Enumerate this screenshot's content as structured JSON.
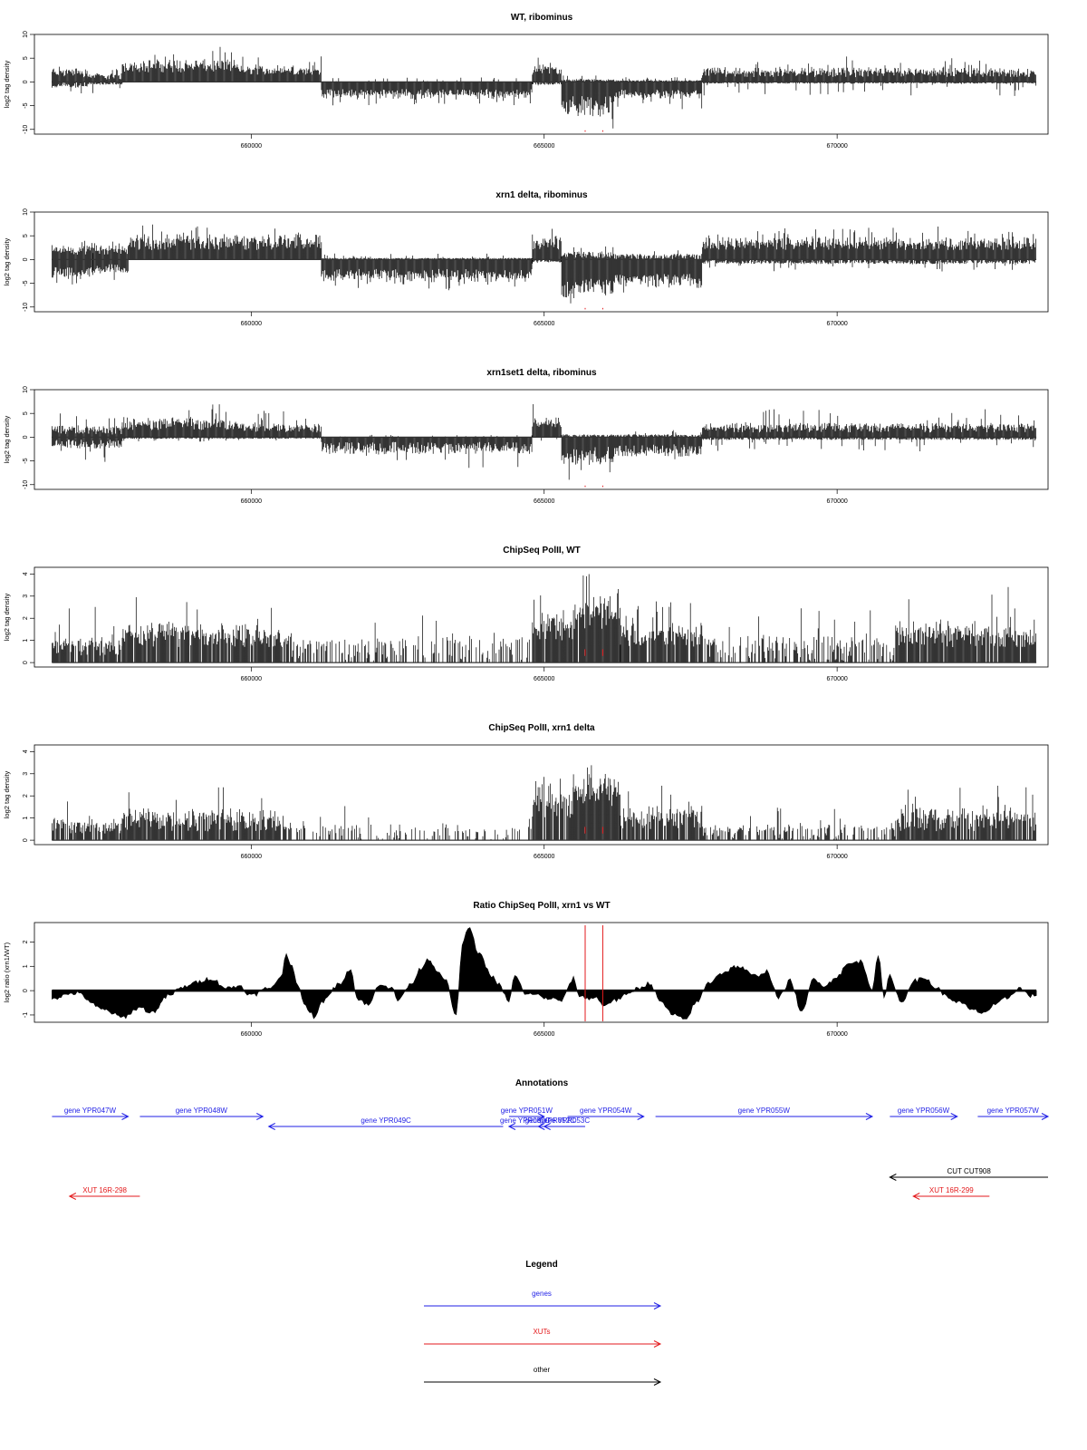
{
  "colors": {
    "gene": "#1f1fe6",
    "xut": "#e31a1c",
    "other": "#000000",
    "marker": "#e31a1c",
    "signal": "#000000"
  },
  "chart_data": [
    {
      "id": "p1",
      "type": "bar",
      "title": "WT, ribominus",
      "ylabel": "log2 tag density",
      "xlim": [
        656300,
        673600
      ],
      "ylim": [
        -11,
        10
      ],
      "yticks": [
        10,
        5,
        0,
        -5,
        -10
      ],
      "ytick_labels": [
        "10",
        "5",
        "0",
        "-5",
        "-10"
      ],
      "xticks": [
        660000,
        665000,
        670000
      ],
      "xtick_labels": [
        "660000",
        "665000",
        "670000"
      ],
      "markers": [
        665700,
        666000
      ],
      "segments": [
        {
          "x0": 656600,
          "x1": 657200,
          "pos": [
            1,
            2.5,
            4
          ],
          "neg": [
            0,
            1,
            3
          ]
        },
        {
          "x0": 657200,
          "x1": 657800,
          "pos": [
            0.5,
            1.5,
            3
          ],
          "neg": [
            0,
            0.5,
            2.5
          ]
        },
        {
          "x0": 657800,
          "x1": 659800,
          "pos": [
            2,
            4,
            7.5
          ],
          "neg": [
            0,
            0,
            0
          ]
        },
        {
          "x0": 659800,
          "x1": 661200,
          "pos": [
            1.5,
            3,
            6
          ],
          "neg": [
            0,
            0,
            0
          ]
        },
        {
          "x0": 661200,
          "x1": 664800,
          "pos": [
            0,
            0,
            1
          ],
          "neg": [
            1.5,
            3,
            5
          ]
        },
        {
          "x0": 664800,
          "x1": 665300,
          "pos": [
            1.5,
            3.5,
            9.5
          ],
          "neg": [
            0,
            0.5,
            1.5
          ]
        },
        {
          "x0": 665300,
          "x1": 666200,
          "pos": [
            0,
            0.5,
            1.5
          ],
          "neg": [
            3,
            6,
            10
          ]
        },
        {
          "x0": 666200,
          "x1": 667700,
          "pos": [
            0,
            0.3,
            1
          ],
          "neg": [
            1.5,
            3,
            6
          ]
        },
        {
          "x0": 667700,
          "x1": 673400,
          "pos": [
            1,
            2.5,
            6
          ],
          "neg": [
            0,
            0.3,
            3
          ]
        }
      ]
    },
    {
      "id": "p2",
      "type": "bar",
      "title": "xrn1 delta, ribominus",
      "ylabel": "log2 tag density",
      "xlim": [
        656300,
        673600
      ],
      "ylim": [
        -11,
        10
      ],
      "yticks": [
        10,
        5,
        0,
        -5,
        -10
      ],
      "ytick_labels": [
        "10",
        "5",
        "0",
        "-5",
        "-10"
      ],
      "xticks": [
        660000,
        665000,
        670000
      ],
      "xtick_labels": [
        "660000",
        "665000",
        "670000"
      ],
      "markers": [
        665700,
        666000
      ],
      "segments": [
        {
          "x0": 656600,
          "x1": 657300,
          "pos": [
            1,
            2.5,
            4.5
          ],
          "neg": [
            1.5,
            3.5,
            6
          ]
        },
        {
          "x0": 657300,
          "x1": 657900,
          "pos": [
            1,
            2.5,
            5
          ],
          "neg": [
            1,
            2.5,
            4.5
          ]
        },
        {
          "x0": 657900,
          "x1": 661200,
          "pos": [
            2,
            4.5,
            7.5
          ],
          "neg": [
            0,
            0,
            0
          ]
        },
        {
          "x0": 661200,
          "x1": 664800,
          "pos": [
            0,
            0.3,
            1.5
          ],
          "neg": [
            2,
            4,
            6.5
          ]
        },
        {
          "x0": 664800,
          "x1": 665300,
          "pos": [
            2,
            4.5,
            9.5
          ],
          "neg": [
            0,
            0.5,
            2
          ]
        },
        {
          "x0": 665300,
          "x1": 666200,
          "pos": [
            0.3,
            1.5,
            3
          ],
          "neg": [
            4,
            7,
            10
          ]
        },
        {
          "x0": 666200,
          "x1": 667700,
          "pos": [
            0,
            1,
            2.5
          ],
          "neg": [
            3,
            5,
            7
          ]
        },
        {
          "x0": 667700,
          "x1": 673400,
          "pos": [
            2,
            4,
            7
          ],
          "neg": [
            0,
            0.8,
            2.5
          ]
        }
      ]
    },
    {
      "id": "p3",
      "type": "bar",
      "title": "xrn1set1 delta, ribominus",
      "ylabel": "log2 tag density",
      "xlim": [
        656300,
        673600
      ],
      "ylim": [
        -11,
        10
      ],
      "yticks": [
        10,
        5,
        0,
        -5,
        -10
      ],
      "ytick_labels": [
        "10",
        "5",
        "0",
        "-5",
        "-10"
      ],
      "xticks": [
        660000,
        665000,
        670000
      ],
      "xtick_labels": [
        "660000",
        "665000",
        "670000"
      ],
      "markers": [
        665700,
        666000
      ],
      "segments": [
        {
          "x0": 656600,
          "x1": 657800,
          "pos": [
            0.5,
            2,
            5
          ],
          "neg": [
            0.5,
            2,
            5.5
          ]
        },
        {
          "x0": 657800,
          "x1": 659800,
          "pos": [
            1.5,
            3.5,
            7.5
          ],
          "neg": [
            0,
            0.3,
            1
          ]
        },
        {
          "x0": 659800,
          "x1": 661200,
          "pos": [
            1,
            2.5,
            6
          ],
          "neg": [
            0,
            0.3,
            1.5
          ]
        },
        {
          "x0": 661200,
          "x1": 664800,
          "pos": [
            0,
            0,
            0.5
          ],
          "neg": [
            1,
            3,
            6.5
          ]
        },
        {
          "x0": 664800,
          "x1": 665300,
          "pos": [
            2,
            3.5,
            9.5
          ],
          "neg": [
            0,
            0,
            1
          ]
        },
        {
          "x0": 665300,
          "x1": 666200,
          "pos": [
            0,
            0.5,
            2
          ],
          "neg": [
            2,
            5,
            10
          ]
        },
        {
          "x0": 666200,
          "x1": 667700,
          "pos": [
            0,
            0.5,
            1.5
          ],
          "neg": [
            1.5,
            3.5,
            7
          ]
        },
        {
          "x0": 667700,
          "x1": 673400,
          "pos": [
            1,
            2.5,
            6
          ],
          "neg": [
            0,
            0.5,
            3
          ]
        }
      ]
    },
    {
      "id": "p4",
      "type": "bar",
      "title": "ChipSeq PolII, WT",
      "ylabel": "log2 tag density",
      "xlim": [
        656300,
        673600
      ],
      "ylim": [
        -0.2,
        4.3
      ],
      "yticks": [
        0,
        1,
        2,
        3,
        4
      ],
      "ytick_labels": [
        "0",
        "1",
        "2",
        "3",
        "4"
      ],
      "xticks": [
        660000,
        665000,
        670000
      ],
      "xtick_labels": [
        "660000",
        "665000",
        "670000"
      ],
      "markers": [
        665700,
        666000
      ],
      "segments": [
        {
          "x0": 656600,
          "x1": 657800,
          "pos": [
            0.3,
            1,
            2.6
          ],
          "neg": [
            0,
            0,
            0
          ],
          "gaps": 0.1
        },
        {
          "x0": 657800,
          "x1": 660500,
          "pos": [
            0.7,
            1.5,
            3.2
          ],
          "neg": [
            0,
            0,
            0
          ],
          "gaps": 0.05
        },
        {
          "x0": 660500,
          "x1": 662700,
          "pos": [
            0,
            1,
            2.8
          ],
          "neg": [
            0,
            0,
            0
          ],
          "gaps": 0.45
        },
        {
          "x0": 662700,
          "x1": 664800,
          "pos": [
            0,
            1,
            2.2
          ],
          "neg": [
            0,
            0,
            0
          ],
          "gaps": 0.6
        },
        {
          "x0": 664800,
          "x1": 665500,
          "pos": [
            1,
            2,
            3.5
          ],
          "neg": [
            0,
            0,
            0
          ],
          "gaps": 0.05
        },
        {
          "x0": 665500,
          "x1": 666300,
          "pos": [
            1.5,
            2.8,
            4
          ],
          "neg": [
            0,
            0,
            0
          ],
          "gaps": 0.02
        },
        {
          "x0": 666300,
          "x1": 667700,
          "pos": [
            0.7,
            1.5,
            2.8
          ],
          "neg": [
            0,
            0,
            0
          ],
          "gaps": 0.1
        },
        {
          "x0": 667700,
          "x1": 671000,
          "pos": [
            0,
            1,
            2.6
          ],
          "neg": [
            0,
            0,
            0
          ],
          "gaps": 0.4
        },
        {
          "x0": 671000,
          "x1": 673400,
          "pos": [
            0.7,
            1.6,
            3.5
          ],
          "neg": [
            0,
            0,
            0
          ],
          "gaps": 0.08
        }
      ]
    },
    {
      "id": "p5",
      "type": "bar",
      "title": "ChipSeq PolII, xrn1 delta",
      "ylabel": "log2 tag density",
      "xlim": [
        656300,
        673600
      ],
      "ylim": [
        -0.2,
        4.3
      ],
      "yticks": [
        0,
        1,
        2,
        3,
        4
      ],
      "ytick_labels": [
        "0",
        "1",
        "2",
        "3",
        "4"
      ],
      "xticks": [
        660000,
        665000,
        670000
      ],
      "xtick_labels": [
        "660000",
        "665000",
        "670000"
      ],
      "markers": [
        665700,
        666000
      ],
      "segments": [
        {
          "x0": 656600,
          "x1": 657800,
          "pos": [
            0.3,
            0.8,
            2.2
          ],
          "neg": [
            0,
            0,
            0
          ],
          "gaps": 0.15
        },
        {
          "x0": 657800,
          "x1": 660500,
          "pos": [
            0.4,
            1.2,
            2.6
          ],
          "neg": [
            0,
            0,
            0
          ],
          "gaps": 0.08
        },
        {
          "x0": 660500,
          "x1": 662700,
          "pos": [
            0,
            0.6,
            1.8
          ],
          "neg": [
            0,
            0,
            0
          ],
          "gaps": 0.55
        },
        {
          "x0": 662700,
          "x1": 664800,
          "pos": [
            0,
            0.5,
            1.4
          ],
          "neg": [
            0,
            0,
            0
          ],
          "gaps": 0.7
        },
        {
          "x0": 664800,
          "x1": 665500,
          "pos": [
            1,
            2,
            3
          ],
          "neg": [
            0,
            0,
            0
          ],
          "gaps": 0.05
        },
        {
          "x0": 665500,
          "x1": 666300,
          "pos": [
            1.5,
            2.5,
            3.5
          ],
          "neg": [
            0,
            0,
            0
          ],
          "gaps": 0.02
        },
        {
          "x0": 666300,
          "x1": 667700,
          "pos": [
            0.5,
            1.3,
            2.6
          ],
          "neg": [
            0,
            0,
            0
          ],
          "gaps": 0.12
        },
        {
          "x0": 667700,
          "x1": 671000,
          "pos": [
            0,
            0.6,
            1.8
          ],
          "neg": [
            0,
            0,
            0
          ],
          "gaps": 0.45
        },
        {
          "x0": 671000,
          "x1": 673400,
          "pos": [
            0.4,
            1.2,
            2.5
          ],
          "neg": [
            0,
            0,
            0
          ],
          "gaps": 0.1
        }
      ]
    },
    {
      "id": "p6",
      "type": "area",
      "title": "Ratio ChipSeq PolII, xrn1 vs WT",
      "ylabel": "log2 ratio (xrn1/WT)",
      "xlim": [
        656300,
        673600
      ],
      "ylim": [
        -1.3,
        2.8
      ],
      "yticks": [
        -1,
        0,
        1,
        2
      ],
      "ytick_labels": [
        "-1",
        "0",
        "1",
        "2"
      ],
      "xticks": [
        660000,
        665000,
        670000
      ],
      "xtick_labels": [
        "660000",
        "665000",
        "670000"
      ],
      "markers": [
        665700,
        666000
      ],
      "x": [
        656600,
        657000,
        657500,
        657800,
        658100,
        658300,
        658600,
        658800,
        659000,
        659300,
        659600,
        659800,
        660000,
        660300,
        660500,
        660600,
        660700,
        660800,
        660900,
        661100,
        661200,
        661300,
        661500,
        661700,
        661800,
        662000,
        662200,
        662400,
        662500,
        662700,
        662900,
        663000,
        663300,
        663500,
        663600,
        663700,
        663900,
        664100,
        664200,
        664400,
        664500,
        664700,
        664800,
        665000,
        665300,
        665500,
        665600,
        665700,
        665900,
        666000,
        666200,
        666400,
        666600,
        666800,
        667000,
        667200,
        667400,
        667600,
        667800,
        668000,
        668300,
        668600,
        668800,
        669000,
        669200,
        669400,
        669600,
        669800,
        670000,
        670200,
        670400,
        670600,
        670700,
        670800,
        670900,
        671100,
        671300,
        671500,
        671700,
        671900,
        672100,
        672300,
        672500,
        672700,
        672900,
        673100,
        673300,
        673400
      ],
      "y": [
        -0.3,
        -0.1,
        -0.8,
        -1.1,
        -0.7,
        -0.9,
        -0.2,
        0.1,
        0.3,
        0.5,
        0.1,
        0.2,
        -0.2,
        0.1,
        0.5,
        1.5,
        1.0,
        0.2,
        -0.6,
        -1.1,
        -0.5,
        -0.2,
        0.3,
        0.9,
        -0.3,
        -0.6,
        0.3,
        0.1,
        -0.4,
        0.2,
        0.9,
        1.3,
        0.5,
        -1.0,
        1.8,
        2.6,
        1.5,
        0.6,
        0.3,
        -0.4,
        0.6,
        -0.2,
        -0.1,
        -0.3,
        -0.4,
        0.5,
        -0.2,
        -0.3,
        -0.3,
        -0.6,
        -0.4,
        -0.2,
        0.1,
        0.3,
        -0.5,
        -1.0,
        -1.2,
        -0.5,
        0.3,
        0.7,
        1.0,
        0.6,
        0.8,
        -0.3,
        0.4,
        -0.9,
        0.5,
        0.2,
        0.6,
        1.1,
        1.2,
        0.1,
        1.5,
        -0.3,
        0.6,
        -0.5,
        0.4,
        0.5,
        0.1,
        -0.3,
        -0.5,
        -0.8,
        -0.9,
        -0.6,
        -0.3,
        0.1,
        -0.2,
        -0.2
      ]
    }
  ],
  "annotations": {
    "title": "Annotations",
    "xlim": [
      656300,
      673600
    ],
    "items": [
      {
        "label": "gene YPR047W",
        "start": 656600,
        "end": 657900,
        "strand": "+",
        "kind": "gene",
        "row": 0
      },
      {
        "label": "gene YPR048W",
        "start": 658100,
        "end": 660200,
        "strand": "+",
        "kind": "gene",
        "row": 0
      },
      {
        "label": "gene YPR049C",
        "start": 660300,
        "end": 664300,
        "strand": "-",
        "kind": "gene",
        "row": 1
      },
      {
        "label": "gene YPR051W",
        "start": 664400,
        "end": 665000,
        "strand": "+",
        "kind": "gene",
        "row": 0
      },
      {
        "label": "gene YPR050C",
        "start": 664400,
        "end": 664950,
        "strand": "-",
        "kind": "gene",
        "row": 1
      },
      {
        "label": "gene YPR052C",
        "start": 664900,
        "end": 665300,
        "strand": "-",
        "kind": "gene",
        "row": 1
      },
      {
        "label": "gene YPR053C",
        "start": 665000,
        "end": 665700,
        "strand": "-",
        "kind": "gene",
        "row": 1
      },
      {
        "label": "gene YPR054W",
        "start": 665400,
        "end": 666700,
        "strand": "+",
        "kind": "gene",
        "row": 0
      },
      {
        "label": "gene YPR055W",
        "start": 666900,
        "end": 670600,
        "strand": "+",
        "kind": "gene",
        "row": 0
      },
      {
        "label": "gene YPR056W",
        "start": 670900,
        "end": 672050,
        "strand": "+",
        "kind": "gene",
        "row": 0
      },
      {
        "label": "gene YPR057W",
        "start": 672400,
        "end": 673600,
        "strand": "+",
        "kind": "gene",
        "row": 0
      },
      {
        "label": "CUT CUT908",
        "start": 670900,
        "end": 673600,
        "strand": "-",
        "kind": "other",
        "row": 2
      },
      {
        "label": "XUT 16R-298",
        "start": 656900,
        "end": 658100,
        "strand": "-",
        "kind": "xut",
        "row": 3
      },
      {
        "label": "XUT 16R-299",
        "start": 671300,
        "end": 672600,
        "strand": "-",
        "kind": "xut",
        "row": 3
      }
    ]
  },
  "legend": {
    "title": "Legend",
    "items": [
      {
        "label": "genes",
        "kind": "gene"
      },
      {
        "label": "XUTs",
        "kind": "xut"
      },
      {
        "label": "other",
        "kind": "other"
      }
    ]
  }
}
